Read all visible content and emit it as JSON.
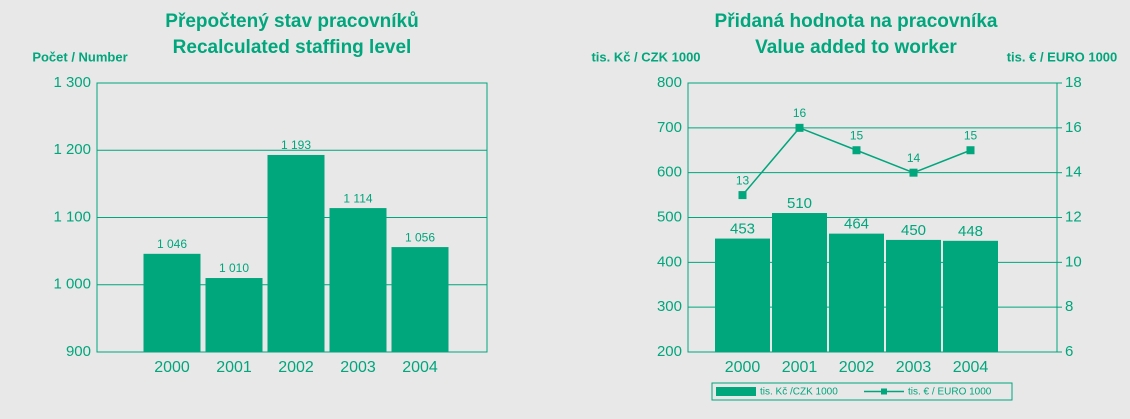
{
  "chart_data": [
    {
      "type": "bar",
      "title": [
        "Přepočtený stav pracovníků",
        "Recalculated staffing level"
      ],
      "ylabel": "Počet / Number",
      "categories": [
        "2000",
        "2001",
        "2002",
        "2003",
        "2004"
      ],
      "values": [
        1046,
        1010,
        1193,
        1114,
        1056
      ],
      "value_labels": [
        "1 046",
        "1 010",
        "1 193",
        "1 114",
        "1 056"
      ],
      "color": "#00a67c",
      "ylim": [
        900,
        1300
      ],
      "yticks": [
        900,
        {
          "value": 1000,
          "label": "1 000"
        },
        {
          "value": 1100,
          "label": "1 100"
        },
        {
          "value": 1200,
          "label": "1 200"
        },
        {
          "value": 1300,
          "label": "1 300"
        }
      ],
      "grid": true
    },
    {
      "type": "combo",
      "title": [
        "Přidaná hodnota na pracovníka",
        "Value added to worker"
      ],
      "ylabel": "tis. Kč / CZK 1000",
      "y2label": "tis. € / EURO 1000",
      "categories": [
        "2000",
        "2001",
        "2002",
        "2003",
        "2004"
      ],
      "series": [
        {
          "name": "tis. Kč /CZK 1000",
          "type": "bar",
          "color": "#00a67c",
          "values": [
            453,
            510,
            464,
            450,
            448
          ]
        },
        {
          "name": "tis. € / EURO 1000",
          "type": "line",
          "axis": "y2",
          "color": "#00a67c",
          "values": [
            13,
            16,
            15,
            14,
            15
          ]
        }
      ],
      "ylim": [
        200,
        800
      ],
      "yticks": [
        200,
        300,
        400,
        500,
        600,
        700,
        800
      ],
      "y2lim": [
        6,
        18
      ],
      "y2ticks": [
        6,
        8,
        10,
        12,
        14,
        16,
        18
      ],
      "grid": true,
      "legend": "bottom"
    }
  ]
}
